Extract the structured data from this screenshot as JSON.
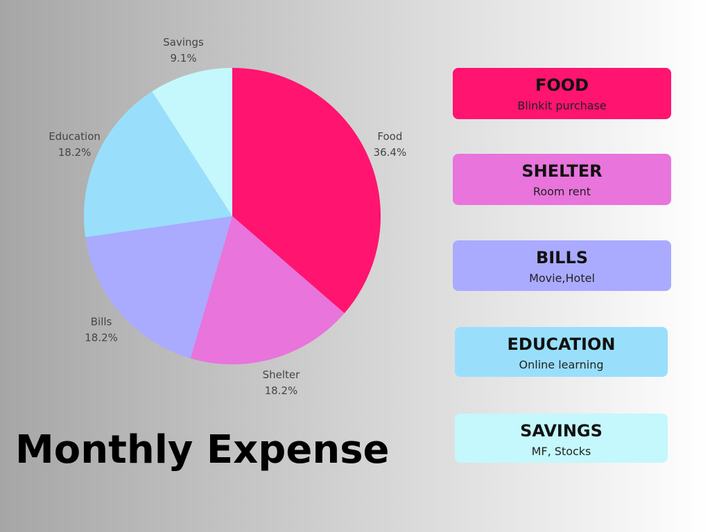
{
  "chart_data": {
    "type": "pie",
    "title": "Monthly Expense",
    "categories": [
      "Food",
      "Shelter",
      "Bills",
      "Education",
      "Savings"
    ],
    "values": [
      36.4,
      18.2,
      18.2,
      18.2,
      9.1
    ],
    "value_labels": [
      "36.4%",
      "18.2%",
      "18.2%",
      "18.2%",
      "9.1%"
    ],
    "colors": [
      "#ff1470",
      "#e874dc",
      "#aaaaff",
      "#99dffc",
      "#c4f8fc"
    ]
  },
  "cards": [
    {
      "title": "FOOD",
      "description": "Blinkit purchase"
    },
    {
      "title": "SHELTER",
      "description": "Room rent"
    },
    {
      "title": "BILLS",
      "description": "Movie,Hotel"
    },
    {
      "title": "EDUCATION",
      "description": "Online learning"
    },
    {
      "title": "SAVINGS",
      "description": "MF, Stocks"
    }
  ]
}
